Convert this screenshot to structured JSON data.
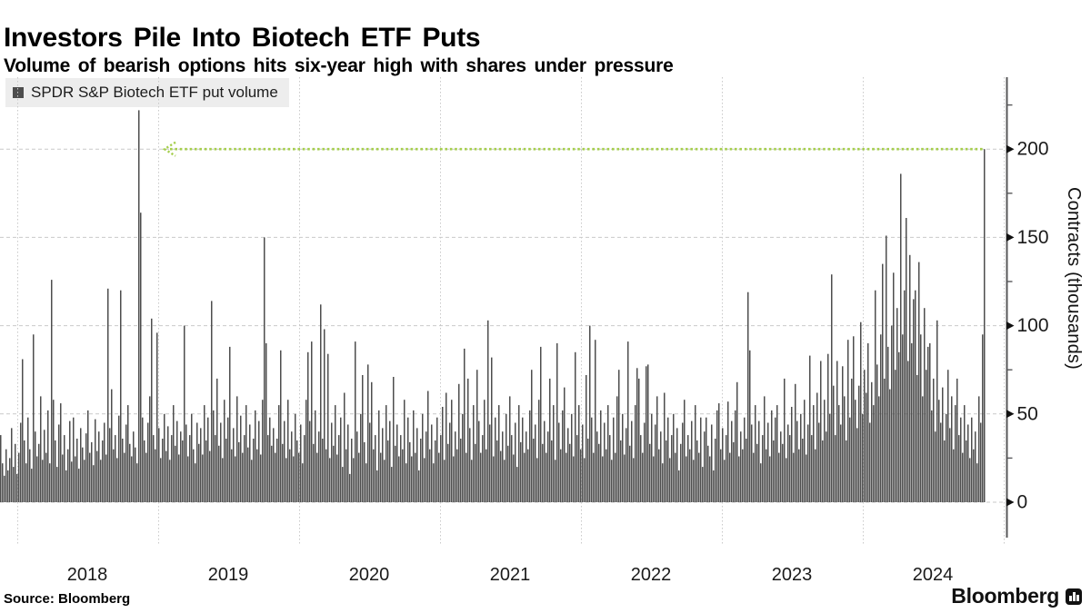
{
  "header": {
    "title": "Investors Pile Into Biotech ETF Puts",
    "subtitle": "Volume of bearish options hits six-year high with shares under pressure"
  },
  "legend": {
    "label": "SPDR S&P Biotech ETF put volume",
    "swatch_color": "#4d4d4d"
  },
  "footer": {
    "source": "Source: Bloomberg",
    "brand": "Bloomberg"
  },
  "chart_data": {
    "type": "bar",
    "series_name": "SPDR S&P Biotech ETF put volume",
    "ylabel": "Contracts (thousands)",
    "ylim": [
      0,
      240
    ],
    "yticks": [
      0,
      50,
      100,
      150,
      200
    ],
    "yticks_minor": [
      25,
      75,
      125,
      175,
      225
    ],
    "x_year_labels": [
      "2018",
      "2019",
      "2020",
      "2021",
      "2022",
      "2023",
      "2024"
    ],
    "bar_color": "#4d4d4d",
    "grid": true,
    "legend_position": "top-left",
    "annotation": {
      "type": "arrow-left",
      "value": 200,
      "color": "#a5ce4d",
      "description": "dotted line from final record bar back to 2018 spike at 200 thousand contracts"
    },
    "peak_value": 222,
    "final_value": 200,
    "values_thousands": [
      38,
      22,
      15,
      30,
      18,
      25,
      42,
      20,
      33,
      16,
      28,
      45,
      81,
      35,
      22,
      48,
      30,
      19,
      95,
      40,
      26,
      33,
      60,
      24,
      41,
      28,
      52,
      22,
      126,
      58,
      35,
      20,
      44,
      56,
      27,
      38,
      18,
      30,
      46,
      23,
      48,
      26,
      36,
      19,
      42,
      31,
      24,
      39,
      52,
      28,
      34,
      21,
      47,
      29,
      40,
      24,
      35,
      45,
      27,
      121,
      42,
      64,
      30,
      38,
      25,
      49,
      120,
      36,
      28,
      44,
      55,
      33,
      26,
      40,
      31,
      22,
      222,
      164,
      48,
      35,
      28,
      45,
      60,
      104,
      38,
      30,
      96,
      42,
      25,
      36,
      50,
      29,
      43,
      24,
      38,
      55,
      32,
      46,
      27,
      40,
      35,
      100,
      44,
      26,
      38,
      50,
      30,
      22,
      45,
      33,
      42,
      27,
      55,
      35,
      48,
      29,
      114,
      52,
      38,
      70,
      32,
      45,
      25,
      58,
      36,
      48,
      88,
      30,
      42,
      26,
      60,
      34,
      49,
      28,
      38,
      55,
      31,
      44,
      24,
      36,
      52,
      30,
      46,
      27,
      58,
      150,
      90,
      38,
      48,
      32,
      42,
      28,
      36,
      55,
      86,
      33,
      46,
      25,
      58,
      30,
      40,
      26,
      50,
      35,
      28,
      44,
      22,
      38,
      58,
      85,
      46,
      91,
      33,
      52,
      28,
      40,
      112,
      36,
      98,
      30,
      84,
      25,
      45,
      32,
      55,
      27,
      38,
      48,
      20,
      62,
      30,
      44,
      16,
      36,
      25,
      91,
      40,
      28,
      50,
      72,
      34,
      22,
      78,
      45,
      68,
      30,
      38,
      18,
      52,
      28,
      42,
      24,
      55,
      35,
      46,
      20,
      71,
      32,
      44,
      26,
      38,
      30,
      58,
      22,
      48,
      34,
      26,
      52,
      28,
      42,
      18,
      36,
      50,
      25,
      40,
      63,
      30,
      44,
      22,
      35,
      48,
      28,
      38,
      54,
      24,
      62,
      33,
      45,
      58,
      26,
      40,
      30,
      67,
      36,
      50,
      87,
      28,
      70,
      42,
      24,
      55,
      33,
      75,
      46,
      28,
      38,
      58,
      30,
      103,
      44,
      82,
      26,
      48,
      35,
      55,
      29,
      40,
      24,
      50,
      32,
      60,
      38,
      27,
      45,
      20,
      55,
      34,
      48,
      28,
      40,
      30,
      52,
      75,
      36,
      44,
      25,
      58,
      88,
      33,
      46,
      28,
      40,
      70,
      35,
      55,
      24,
      90,
      45,
      30,
      52,
      65,
      28,
      42,
      33,
      50,
      26,
      85,
      38,
      55,
      30,
      44,
      25,
      72,
      36,
      100,
      48,
      28,
      92,
      40,
      33,
      52,
      26,
      45,
      30,
      55,
      38,
      24,
      48,
      28,
      60,
      75,
      35,
      50,
      27,
      42,
      91,
      32,
      46,
      25,
      55,
      76,
      70,
      38,
      28,
      45,
      77,
      78,
      33,
      50,
      26,
      44,
      60,
      30,
      40,
      22,
      62,
      35,
      48,
      25,
      38,
      50,
      28,
      42,
      18,
      33,
      45,
      58,
      26,
      38,
      30,
      46,
      24,
      55,
      35,
      28,
      48,
      20,
      40,
      48,
      32,
      26,
      44,
      18,
      36,
      52,
      56,
      30,
      42,
      24,
      38,
      57,
      28,
      46,
      34,
      52,
      68,
      26,
      40,
      30,
      48,
      36,
      119,
      86,
      44,
      28,
      55,
      33,
      46,
      22,
      38,
      60,
      30,
      45,
      26,
      52,
      35,
      48,
      55,
      28,
      40,
      33,
      70,
      25,
      44,
      38,
      54,
      28,
      67,
      46,
      30,
      50,
      36,
      58,
      27,
      44,
      83,
      38,
      55,
      30,
      62,
      45,
      80,
      35,
      58,
      40,
      84,
      50,
      129,
      66,
      38,
      80,
      55,
      44,
      77,
      60,
      35,
      92,
      48,
      70,
      94,
      58,
      42,
      66,
      102,
      50,
      75,
      62,
      90,
      45,
      68,
      55,
      120,
      78,
      60,
      95,
      135,
      70,
      151,
      88,
      64,
      100,
      130,
      75,
      110,
      85,
      186,
      95,
      120,
      161,
      80,
      140,
      90,
      115,
      120,
      72,
      136,
      95,
      60,
      110,
      75,
      88,
      90,
      52,
      70,
      40,
      103,
      58,
      45,
      65,
      35,
      50,
      75,
      42,
      60,
      30,
      55,
      70,
      38,
      48,
      28,
      55,
      35,
      44,
      25,
      48,
      30,
      40,
      22,
      60,
      45,
      95,
      200
    ]
  }
}
